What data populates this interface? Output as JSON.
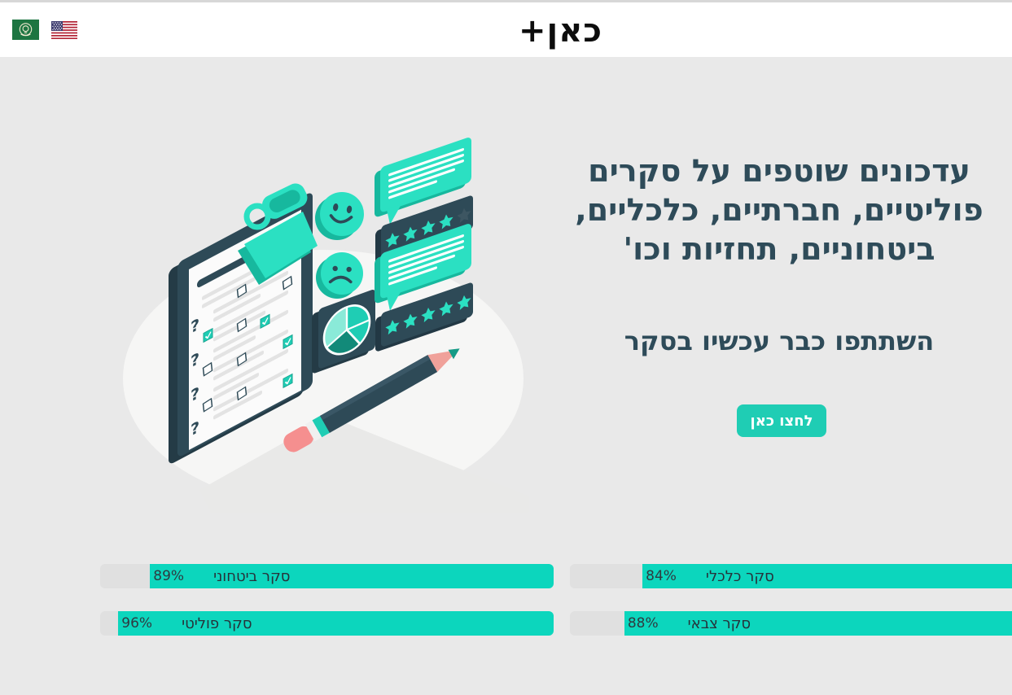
{
  "header": {
    "logo_text": "כאן+",
    "flags": [
      {
        "name": "arab-league-flag"
      },
      {
        "name": "usa-flag"
      }
    ]
  },
  "hero": {
    "heading": "עדכונים שוטפים על סקרים פוליטיים, חברתיים, כלכליים, ביטחוניים, תחזיות וכו'",
    "subheading": "השתתפו כבר עכשיו בסקר",
    "cta_label": "לחצו כאן"
  },
  "surveys": [
    {
      "label": "סקר ביטחוני",
      "percent": 89,
      "percent_label": "89%"
    },
    {
      "label": "סקר כלכלי",
      "percent": 84,
      "percent_label": "84%"
    },
    {
      "label": "סקר פוליטי",
      "percent": 96,
      "percent_label": "96%"
    },
    {
      "label": "סקר צבאי",
      "percent": 88,
      "percent_label": "88%"
    }
  ],
  "colors": {
    "accent_teal": "#1fcdb4",
    "bar_fill_teal": "#0cd6bd",
    "heading_slate": "#2e4b59",
    "background_gray": "#e9e9e9"
  }
}
